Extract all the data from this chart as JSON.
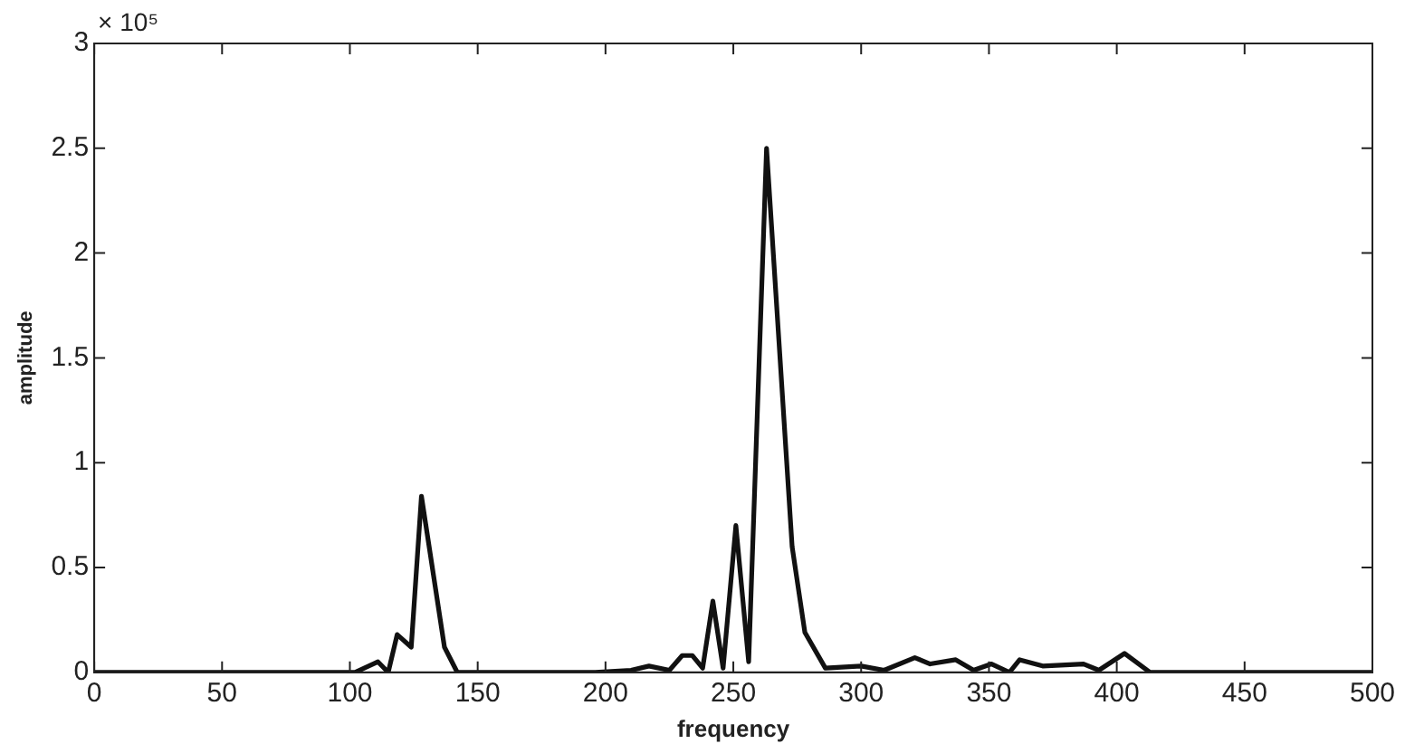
{
  "chart_data": {
    "type": "line",
    "xlabel": "frequency",
    "ylabel": "amplitude",
    "annotations": [
      "× 10⁵"
    ],
    "series": [
      {
        "color": "#111111",
        "x": [
          0,
          102,
          111,
          115,
          118.5,
          124,
          128,
          137,
          142,
          196,
          210,
          217,
          225,
          230,
          234,
          238,
          242,
          246,
          251,
          256,
          263,
          273,
          278,
          286,
          300,
          309,
          321,
          327,
          337,
          344,
          351,
          358,
          362,
          371,
          387,
          393,
          403,
          413,
          500
        ],
        "values": [
          0,
          0,
          0.05,
          0,
          0.18,
          0.12,
          0.84,
          0.12,
          0,
          0,
          0.01,
          0.03,
          0.01,
          0.08,
          0.08,
          0.02,
          0.34,
          0.02,
          0.7,
          0.05,
          2.5,
          0.6,
          0.19,
          0.02,
          0.03,
          0.01,
          0.07,
          0.04,
          0.06,
          0.01,
          0.04,
          0,
          0.06,
          0.03,
          0.04,
          0.01,
          0.09,
          0,
          0
        ]
      }
    ],
    "xlim": [
      0,
      500
    ],
    "xticks": [
      0,
      50,
      100,
      150,
      200,
      250,
      300,
      350,
      400,
      450,
      500
    ],
    "ylim": [
      0,
      3
    ],
    "yticks": [
      0,
      0.5,
      1,
      1.5,
      2,
      2.5,
      3
    ],
    "grid": false,
    "legend": false,
    "marker": "none",
    "line_style": "solid"
  }
}
